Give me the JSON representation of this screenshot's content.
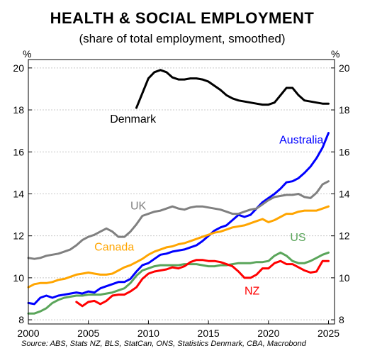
{
  "chart_data": {
    "type": "line",
    "title": "HEALTH & SOCIAL EMPLOYMENT",
    "subtitle": "(share of total employment, smoothed)",
    "ylabel_left": "%",
    "ylabel_right": "%",
    "source": "Source: ABS, Stats NZ, BLS, StatCan, ONS, Statistics Denmark, CBA, Macrobond",
    "xlim": [
      2000,
      2025.5
    ],
    "ylim": [
      7.8,
      20.4
    ],
    "x_ticks": [
      2000,
      2005,
      2010,
      2015,
      2020,
      2025
    ],
    "y_ticks": [
      8,
      10,
      12,
      14,
      16,
      18,
      20
    ],
    "grid": true,
    "series": [
      {
        "name": "Denmark",
        "color": "#000000",
        "points": [
          [
            2009,
            18.1
          ],
          [
            2009.5,
            18.8
          ],
          [
            2010,
            19.5
          ],
          [
            2010.5,
            19.8
          ],
          [
            2011,
            19.9
          ],
          [
            2011.5,
            19.8
          ],
          [
            2012,
            19.55
          ],
          [
            2012.5,
            19.45
          ],
          [
            2013,
            19.45
          ],
          [
            2013.5,
            19.5
          ],
          [
            2014,
            19.5
          ],
          [
            2014.5,
            19.45
          ],
          [
            2015,
            19.35
          ],
          [
            2015.5,
            19.15
          ],
          [
            2016,
            18.95
          ],
          [
            2016.5,
            18.7
          ],
          [
            2017,
            18.55
          ],
          [
            2017.5,
            18.45
          ],
          [
            2018,
            18.4
          ],
          [
            2018.5,
            18.35
          ],
          [
            2019,
            18.3
          ],
          [
            2019.5,
            18.25
          ],
          [
            2020,
            18.25
          ],
          [
            2020.5,
            18.35
          ],
          [
            2021,
            18.7
          ],
          [
            2021.5,
            19.05
          ],
          [
            2022,
            19.05
          ],
          [
            2022.5,
            18.7
          ],
          [
            2023,
            18.45
          ],
          [
            2023.5,
            18.4
          ],
          [
            2024,
            18.35
          ],
          [
            2024.5,
            18.3
          ],
          [
            2025,
            18.3
          ]
        ]
      },
      {
        "name": "Australia",
        "color": "#0000ff",
        "points": [
          [
            2000,
            8.8
          ],
          [
            2000.5,
            8.75
          ],
          [
            2001,
            9.05
          ],
          [
            2001.5,
            9.15
          ],
          [
            2002,
            9.05
          ],
          [
            2002.5,
            9.15
          ],
          [
            2003,
            9.2
          ],
          [
            2003.5,
            9.25
          ],
          [
            2004,
            9.3
          ],
          [
            2004.5,
            9.25
          ],
          [
            2005,
            9.35
          ],
          [
            2005.5,
            9.3
          ],
          [
            2006,
            9.5
          ],
          [
            2006.5,
            9.6
          ],
          [
            2007,
            9.7
          ],
          [
            2007.5,
            9.8
          ],
          [
            2008,
            9.8
          ],
          [
            2008.5,
            9.95
          ],
          [
            2009,
            10.3
          ],
          [
            2009.5,
            10.6
          ],
          [
            2010,
            10.7
          ],
          [
            2010.5,
            10.9
          ],
          [
            2011,
            11.1
          ],
          [
            2011.5,
            11.15
          ],
          [
            2012,
            11.25
          ],
          [
            2012.5,
            11.3
          ],
          [
            2013,
            11.35
          ],
          [
            2013.5,
            11.45
          ],
          [
            2014,
            11.55
          ],
          [
            2014.5,
            11.75
          ],
          [
            2015,
            12.0
          ],
          [
            2015.5,
            12.25
          ],
          [
            2016,
            12.4
          ],
          [
            2016.5,
            12.5
          ],
          [
            2017,
            12.75
          ],
          [
            2017.5,
            13.0
          ],
          [
            2018,
            12.9
          ],
          [
            2018.5,
            13.0
          ],
          [
            2019,
            13.3
          ],
          [
            2019.5,
            13.6
          ],
          [
            2020,
            13.8
          ],
          [
            2020.5,
            14.0
          ],
          [
            2021,
            14.25
          ],
          [
            2021.5,
            14.55
          ],
          [
            2022,
            14.6
          ],
          [
            2022.5,
            14.75
          ],
          [
            2023,
            15.0
          ],
          [
            2023.5,
            15.3
          ],
          [
            2024,
            15.7
          ],
          [
            2024.5,
            16.2
          ],
          [
            2025,
            16.9
          ]
        ]
      },
      {
        "name": "UK",
        "color": "#808080",
        "points": [
          [
            2000,
            10.95
          ],
          [
            2000.5,
            10.9
          ],
          [
            2001,
            10.95
          ],
          [
            2001.5,
            11.05
          ],
          [
            2002,
            11.1
          ],
          [
            2002.5,
            11.15
          ],
          [
            2003,
            11.25
          ],
          [
            2003.5,
            11.35
          ],
          [
            2004,
            11.55
          ],
          [
            2004.5,
            11.8
          ],
          [
            2005,
            11.95
          ],
          [
            2005.5,
            12.05
          ],
          [
            2006,
            12.2
          ],
          [
            2006.5,
            12.35
          ],
          [
            2007,
            12.2
          ],
          [
            2007.5,
            11.95
          ],
          [
            2008,
            11.95
          ],
          [
            2008.5,
            12.2
          ],
          [
            2009,
            12.55
          ],
          [
            2009.5,
            12.95
          ],
          [
            2010,
            13.05
          ],
          [
            2010.5,
            13.15
          ],
          [
            2011,
            13.2
          ],
          [
            2011.5,
            13.3
          ],
          [
            2012,
            13.4
          ],
          [
            2012.5,
            13.3
          ],
          [
            2013,
            13.25
          ],
          [
            2013.5,
            13.35
          ],
          [
            2014,
            13.4
          ],
          [
            2014.5,
            13.4
          ],
          [
            2015,
            13.35
          ],
          [
            2015.5,
            13.3
          ],
          [
            2016,
            13.25
          ],
          [
            2016.5,
            13.15
          ],
          [
            2017,
            13.05
          ],
          [
            2017.5,
            13.05
          ],
          [
            2018,
            13.15
          ],
          [
            2018.5,
            13.25
          ],
          [
            2019,
            13.3
          ],
          [
            2019.5,
            13.5
          ],
          [
            2020,
            13.7
          ],
          [
            2020.5,
            13.85
          ],
          [
            2021,
            13.9
          ],
          [
            2021.5,
            13.95
          ],
          [
            2022,
            13.95
          ],
          [
            2022.5,
            14.0
          ],
          [
            2023,
            13.85
          ],
          [
            2023.5,
            13.8
          ],
          [
            2024,
            14.05
          ],
          [
            2024.5,
            14.45
          ],
          [
            2025,
            14.6
          ]
        ]
      },
      {
        "name": "Canada",
        "color": "#ffa500",
        "points": [
          [
            2000,
            9.55
          ],
          [
            2000.5,
            9.7
          ],
          [
            2001,
            9.75
          ],
          [
            2001.5,
            9.75
          ],
          [
            2002,
            9.8
          ],
          [
            2002.5,
            9.9
          ],
          [
            2003,
            9.95
          ],
          [
            2003.5,
            10.05
          ],
          [
            2004,
            10.15
          ],
          [
            2004.5,
            10.2
          ],
          [
            2005,
            10.25
          ],
          [
            2005.5,
            10.2
          ],
          [
            2006,
            10.15
          ],
          [
            2006.5,
            10.15
          ],
          [
            2007,
            10.2
          ],
          [
            2007.5,
            10.35
          ],
          [
            2008,
            10.5
          ],
          [
            2008.5,
            10.6
          ],
          [
            2009,
            10.75
          ],
          [
            2009.5,
            10.9
          ],
          [
            2010,
            11.1
          ],
          [
            2010.5,
            11.25
          ],
          [
            2011,
            11.35
          ],
          [
            2011.5,
            11.45
          ],
          [
            2012,
            11.5
          ],
          [
            2012.5,
            11.6
          ],
          [
            2013,
            11.65
          ],
          [
            2013.5,
            11.75
          ],
          [
            2014,
            11.85
          ],
          [
            2014.5,
            11.95
          ],
          [
            2015,
            12.05
          ],
          [
            2015.5,
            12.15
          ],
          [
            2016,
            12.2
          ],
          [
            2016.5,
            12.3
          ],
          [
            2017,
            12.4
          ],
          [
            2017.5,
            12.45
          ],
          [
            2018,
            12.5
          ],
          [
            2018.5,
            12.6
          ],
          [
            2019,
            12.7
          ],
          [
            2019.5,
            12.8
          ],
          [
            2020,
            12.65
          ],
          [
            2020.5,
            12.75
          ],
          [
            2021,
            12.9
          ],
          [
            2021.5,
            13.05
          ],
          [
            2022,
            13.05
          ],
          [
            2022.5,
            13.15
          ],
          [
            2023,
            13.2
          ],
          [
            2023.5,
            13.2
          ],
          [
            2024,
            13.2
          ],
          [
            2024.5,
            13.3
          ],
          [
            2025,
            13.4
          ]
        ]
      },
      {
        "name": "US",
        "color": "#5aa55a",
        "points": [
          [
            2000,
            8.3
          ],
          [
            2000.5,
            8.3
          ],
          [
            2001,
            8.4
          ],
          [
            2001.5,
            8.55
          ],
          [
            2002,
            8.8
          ],
          [
            2002.5,
            8.95
          ],
          [
            2003,
            9.05
          ],
          [
            2003.5,
            9.1
          ],
          [
            2004,
            9.15
          ],
          [
            2004.5,
            9.15
          ],
          [
            2005,
            9.2
          ],
          [
            2005.5,
            9.2
          ],
          [
            2006,
            9.2
          ],
          [
            2006.5,
            9.25
          ],
          [
            2007,
            9.3
          ],
          [
            2007.5,
            9.4
          ],
          [
            2008,
            9.5
          ],
          [
            2008.5,
            9.75
          ],
          [
            2009,
            10.1
          ],
          [
            2009.5,
            10.35
          ],
          [
            2010,
            10.45
          ],
          [
            2010.5,
            10.55
          ],
          [
            2011,
            10.6
          ],
          [
            2011.5,
            10.6
          ],
          [
            2012,
            10.6
          ],
          [
            2012.5,
            10.6
          ],
          [
            2013,
            10.65
          ],
          [
            2013.5,
            10.65
          ],
          [
            2014,
            10.65
          ],
          [
            2014.5,
            10.6
          ],
          [
            2015,
            10.55
          ],
          [
            2015.5,
            10.55
          ],
          [
            2016,
            10.6
          ],
          [
            2016.5,
            10.6
          ],
          [
            2017,
            10.65
          ],
          [
            2017.5,
            10.7
          ],
          [
            2018,
            10.7
          ],
          [
            2018.5,
            10.7
          ],
          [
            2019,
            10.75
          ],
          [
            2019.5,
            10.75
          ],
          [
            2020,
            10.8
          ],
          [
            2020.5,
            11.05
          ],
          [
            2021,
            11.2
          ],
          [
            2021.5,
            11.05
          ],
          [
            2022,
            10.8
          ],
          [
            2022.5,
            10.7
          ],
          [
            2023,
            10.7
          ],
          [
            2023.5,
            10.8
          ],
          [
            2024,
            10.95
          ],
          [
            2024.5,
            11.1
          ],
          [
            2025,
            11.2
          ]
        ]
      },
      {
        "name": "NZ",
        "color": "#ff0000",
        "points": [
          [
            2004,
            8.85
          ],
          [
            2004.5,
            8.65
          ],
          [
            2005,
            8.85
          ],
          [
            2005.5,
            8.9
          ],
          [
            2006,
            8.75
          ],
          [
            2006.5,
            8.9
          ],
          [
            2007,
            9.15
          ],
          [
            2007.5,
            9.2
          ],
          [
            2008,
            9.2
          ],
          [
            2008.5,
            9.35
          ],
          [
            2009,
            9.55
          ],
          [
            2009.5,
            9.95
          ],
          [
            2010,
            10.2
          ],
          [
            2010.5,
            10.3
          ],
          [
            2011,
            10.35
          ],
          [
            2011.5,
            10.4
          ],
          [
            2012,
            10.5
          ],
          [
            2012.5,
            10.45
          ],
          [
            2013,
            10.55
          ],
          [
            2013.5,
            10.75
          ],
          [
            2014,
            10.85
          ],
          [
            2014.5,
            10.85
          ],
          [
            2015,
            10.8
          ],
          [
            2015.5,
            10.8
          ],
          [
            2016,
            10.75
          ],
          [
            2016.5,
            10.65
          ],
          [
            2017,
            10.55
          ],
          [
            2017.5,
            10.3
          ],
          [
            2018,
            10.0
          ],
          [
            2018.5,
            10.0
          ],
          [
            2019,
            10.15
          ],
          [
            2019.5,
            10.45
          ],
          [
            2020,
            10.45
          ],
          [
            2020.5,
            10.7
          ],
          [
            2021,
            10.8
          ],
          [
            2021.5,
            10.65
          ],
          [
            2022,
            10.65
          ],
          [
            2022.5,
            10.5
          ],
          [
            2023,
            10.35
          ],
          [
            2023.5,
            10.25
          ],
          [
            2024,
            10.3
          ],
          [
            2024.5,
            10.8
          ],
          [
            2025,
            10.8
          ]
        ]
      }
    ],
    "series_labels": [
      {
        "text": "Denmark",
        "series": "Denmark",
        "at": [
          2006.8,
          17.4
        ],
        "color": "#000000"
      },
      {
        "text": "Australia",
        "series": "Australia",
        "at": [
          2020.9,
          16.4
        ],
        "color": "#0000ff"
      },
      {
        "text": "UK",
        "series": "UK",
        "at": [
          2008.5,
          13.25
        ],
        "color": "#808080"
      },
      {
        "text": "Canada",
        "series": "Canada",
        "at": [
          2005.5,
          11.3
        ],
        "color": "#ffa500"
      },
      {
        "text": "US",
        "series": "US",
        "at": [
          2021.8,
          11.75
        ],
        "color": "#5aa55a"
      },
      {
        "text": "NZ",
        "series": "NZ",
        "at": [
          2018.0,
          9.2
        ],
        "color": "#ff0000"
      }
    ]
  }
}
